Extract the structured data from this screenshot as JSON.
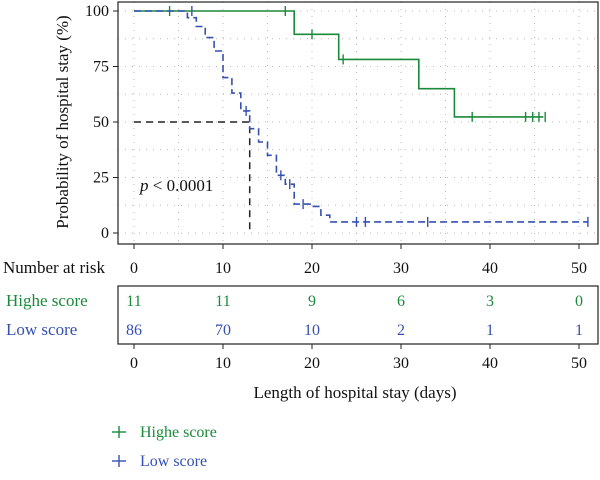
{
  "chart_data": {
    "type": "line",
    "subtype": "kaplan-meier",
    "ylabel": "Probability of hospital stay (%)",
    "xlabel": "Length of hospital stay (days)",
    "xlim": [
      -2,
      52
    ],
    "ylim": [
      -4,
      101
    ],
    "x_ticks": [
      0,
      10,
      20,
      30,
      40,
      50
    ],
    "y_ticks": [
      0,
      25,
      50,
      75,
      100
    ],
    "grid": true,
    "annotation": {
      "prefix": "p",
      "text": " < 0.0001"
    },
    "median_reference": {
      "x": 13,
      "y": 50
    },
    "colors": {
      "high": "#1a8a3a",
      "low": "#3550b0",
      "reference": "#222222"
    },
    "series": [
      {
        "name": "Highe score",
        "color": "#1a8a3a",
        "line_style": "solid",
        "steps": [
          [
            0,
            100
          ],
          [
            18,
            100
          ],
          [
            18,
            89.5
          ],
          [
            23,
            89.5
          ],
          [
            23,
            78.2
          ],
          [
            32,
            78.2
          ],
          [
            32,
            65
          ],
          [
            36,
            65
          ],
          [
            36,
            52.3
          ],
          [
            46,
            52.3
          ]
        ],
        "censored": [
          [
            4,
            100
          ],
          [
            17,
            100
          ],
          [
            20,
            89.5
          ],
          [
            23.5,
            78.2
          ],
          [
            38,
            52.3
          ],
          [
            44,
            52.3
          ],
          [
            44.8,
            52.3
          ],
          [
            45.5,
            52.3
          ],
          [
            46.2,
            52.3
          ]
        ]
      },
      {
        "name": "Low score",
        "color": "#3550b0",
        "line_style": "dashed",
        "steps": [
          [
            0,
            100
          ],
          [
            6,
            100
          ],
          [
            6,
            97
          ],
          [
            7,
            97
          ],
          [
            7,
            93
          ],
          [
            8,
            93
          ],
          [
            8,
            88
          ],
          [
            9,
            88
          ],
          [
            9,
            82
          ],
          [
            10,
            82
          ],
          [
            10,
            70
          ],
          [
            11,
            70
          ],
          [
            11,
            63
          ],
          [
            12,
            63
          ],
          [
            12,
            55
          ],
          [
            13,
            55
          ],
          [
            13,
            47
          ],
          [
            14,
            47
          ],
          [
            14,
            41
          ],
          [
            15,
            41
          ],
          [
            15,
            35
          ],
          [
            16,
            35
          ],
          [
            16,
            26
          ],
          [
            17,
            26
          ],
          [
            17,
            22
          ],
          [
            18,
            22
          ],
          [
            18,
            13
          ],
          [
            20,
            13
          ],
          [
            20,
            12
          ],
          [
            21,
            12
          ],
          [
            21,
            8
          ],
          [
            22,
            8
          ],
          [
            22,
            5
          ],
          [
            51,
            5
          ]
        ],
        "censored": [
          [
            6.5,
            100
          ],
          [
            12.6,
            55
          ],
          [
            16.5,
            26
          ],
          [
            17.5,
            22
          ],
          [
            19,
            13
          ],
          [
            25,
            5
          ],
          [
            26,
            5
          ],
          [
            33,
            5
          ],
          [
            51,
            5
          ]
        ]
      }
    ]
  },
  "risk_table": {
    "title": "Number at risk",
    "times": [
      "0",
      "10",
      "20",
      "30",
      "40",
      "50"
    ],
    "rows": [
      {
        "label": "Highe score",
        "color": "#1a8a3a",
        "values": [
          "11",
          "11",
          "9",
          "6",
          "3",
          "0"
        ]
      },
      {
        "label": "Low score",
        "color": "#3550b0",
        "values": [
          "86",
          "70",
          "10",
          "2",
          "1",
          "1"
        ]
      }
    ],
    "bottom_ticks": [
      "0",
      "10",
      "20",
      "30",
      "40",
      "50"
    ]
  },
  "legend": {
    "items": [
      {
        "label": "Highe score",
        "color": "#1a8a3a"
      },
      {
        "label": "Low score",
        "color": "#3550b0"
      }
    ]
  }
}
